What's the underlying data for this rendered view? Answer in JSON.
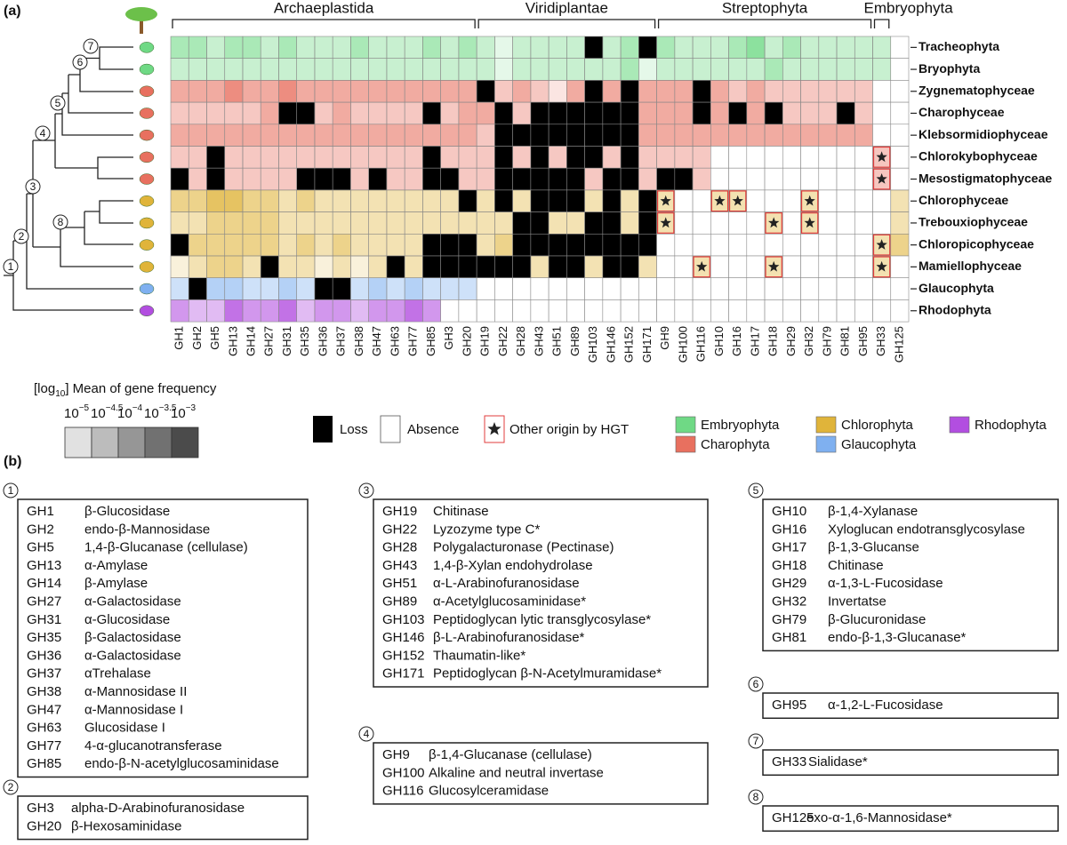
{
  "panel_a": "(a)",
  "panel_b": "(b)",
  "clades": [
    {
      "label": "Archaeplastida",
      "sections": [
        0,
        1
      ]
    },
    {
      "label": "Viridiplantae",
      "sections": [
        2
      ]
    },
    {
      "label": "Streptophyta",
      "sections": [
        3,
        4,
        5
      ]
    },
    {
      "label": "Embryophyta",
      "sections": [
        6
      ]
    }
  ],
  "groups": [
    {
      "label": "Embryophyta",
      "color": "#6fd985"
    },
    {
      "label": "Charophyta",
      "color": "#e8705f"
    },
    {
      "label": "Chlorophyta",
      "color": "#e0b43a"
    },
    {
      "label": "Glaucophyta",
      "color": "#7fb0f0"
    },
    {
      "label": "Rhodophyta",
      "color": "#b24ee0"
    }
  ],
  "key": {
    "loss": "Loss",
    "absence": "Absence",
    "hgt": "Other origin by HGT"
  },
  "scale": {
    "title_pre": "[log",
    "title_sub": "10",
    "title_post": "] Mean of gene frequency",
    "base": "10",
    "ticks": [
      {
        "value": -5,
        "label": "−5"
      },
      {
        "value": -4.5,
        "label": "−4.5"
      },
      {
        "value": -4,
        "label": "−4"
      },
      {
        "value": -3.5,
        "label": "−3.5"
      },
      {
        "value": -3,
        "label": "−3"
      }
    ]
  },
  "rows": [
    {
      "label": "Tracheophyta",
      "group": "Embryophyta",
      "cells": [
        -4,
        -4,
        -4.5,
        -4,
        -4,
        -4.5,
        -4,
        -4.5,
        -4.5,
        -4.5,
        -4,
        -4.5,
        -4.5,
        -4.5,
        -4,
        -4.5,
        -4,
        -4.5,
        -5,
        -4.5,
        -4.5,
        -4.5,
        -4.5,
        "L",
        -4.5,
        -4,
        "L",
        -4,
        -4.5,
        -4.5,
        -4.5,
        -4,
        -3.5,
        -4.5,
        -4,
        -4.5,
        -4.5,
        -4.5,
        -4.5,
        -4.5,
        "A"
      ]
    },
    {
      "label": "Bryophyta",
      "group": "Embryophyta",
      "cells": [
        -4.5,
        -4.5,
        -4.5,
        -4.5,
        -4.5,
        -4.5,
        -4.5,
        -4.5,
        -4.5,
        -4.5,
        -4.5,
        -4.5,
        -4.5,
        -4.5,
        -4.5,
        -4.5,
        -4.5,
        -4.5,
        -5,
        -4.5,
        -4.5,
        -4.5,
        -4.5,
        -4.5,
        -4.5,
        -4,
        -5,
        -4.5,
        -4.5,
        -4.5,
        -4.5,
        -4.5,
        -4.5,
        -4,
        -4.5,
        -4.5,
        -4.5,
        -4.5,
        -4.5,
        -4.5,
        "A"
      ]
    },
    {
      "label": "Zygnematophyceae",
      "group": "Charophyta",
      "cells": [
        -4,
        -4,
        -4,
        -3.5,
        -4,
        -4,
        -3.5,
        -4,
        -4,
        -4,
        -4,
        -4,
        -4,
        -4,
        -4,
        -4,
        -4,
        "L",
        -4.5,
        -4,
        -4.5,
        -5,
        -4,
        "L",
        -4,
        "L",
        -4,
        -4,
        -4,
        "L",
        -4,
        -4.5,
        -4,
        -4.5,
        -4.5,
        -4.5,
        -4.5,
        -4.5,
        -4.5,
        "A",
        "A"
      ]
    },
    {
      "label": "Charophyceae",
      "group": "Charophyta",
      "cells": [
        -4.5,
        -4.5,
        -4.5,
        -4.5,
        -4.5,
        -4,
        "L",
        "L",
        -4.5,
        -4,
        -4.5,
        -4.5,
        -4.5,
        -4.5,
        "L",
        -4.5,
        -4,
        -4,
        "L",
        -4.5,
        "L",
        "L",
        "L",
        "L",
        "L",
        "L",
        -4,
        -4,
        -4,
        "L",
        -4,
        "L",
        -4,
        "L",
        -4.5,
        -4.5,
        -4.5,
        "L",
        -4.5,
        "A",
        "A"
      ]
    },
    {
      "label": "Klebsormidiophyceae",
      "group": "Charophyta",
      "cells": [
        -4,
        -4,
        -4,
        -4,
        -4,
        -4,
        -4,
        -4,
        -4,
        -4,
        -4,
        -4,
        -4,
        -4,
        -4,
        -4,
        -4,
        -4.5,
        "L",
        "L",
        "L",
        "L",
        "L",
        "L",
        "L",
        "L",
        -4,
        -4,
        -4,
        -4,
        -4,
        -4,
        -4,
        -4,
        -4,
        -4,
        -4,
        -4,
        -4,
        "A",
        "A"
      ]
    },
    {
      "label": "Chlorokybophyceae",
      "group": "Charophyta",
      "cells": [
        -4.5,
        -4.5,
        "L",
        -4.5,
        -4.5,
        -4.5,
        -4.5,
        -4.5,
        -4.5,
        -4.5,
        -4.5,
        -4.5,
        -4.5,
        -4.5,
        "L",
        -4.5,
        -4.5,
        -4.5,
        "L",
        -4.5,
        "L",
        -4.5,
        "L",
        "L",
        -4.5,
        "L",
        -4.5,
        -4.5,
        -4.5,
        -4.5,
        "A",
        "A",
        "A",
        "A",
        "A",
        "A",
        "A",
        "A",
        "A",
        "H",
        "A"
      ]
    },
    {
      "label": "Mesostigmatophyceae",
      "group": "Charophyta",
      "cells": [
        "L",
        -4.5,
        "L",
        -4.5,
        -4.5,
        -4.5,
        -4.5,
        "L",
        "L",
        "L",
        -4.5,
        "L",
        -4.5,
        -4.5,
        "L",
        "L",
        -4.5,
        -4.5,
        "L",
        "L",
        "L",
        "L",
        "L",
        -4.5,
        "L",
        "L",
        -4.5,
        "L",
        "L",
        -4.5,
        "A",
        "A",
        "A",
        "A",
        "A",
        "A",
        "A",
        "A",
        "A",
        "H",
        "A"
      ]
    },
    {
      "label": "Chlorophyceae",
      "group": "Chlorophyta",
      "cells": [
        -4,
        -4,
        -3.5,
        -3.5,
        -4,
        -4,
        -4.5,
        -4,
        -4.5,
        -4.5,
        -4.5,
        -4.5,
        -4.5,
        -4.5,
        -4.5,
        -4.5,
        "L",
        -4.5,
        "L",
        -4.5,
        "L",
        "L",
        "L",
        -4.5,
        "L",
        -4.5,
        "L",
        "H",
        "A",
        "A",
        "H",
        "H",
        "A",
        "A",
        "A",
        "H",
        "A",
        "A",
        "A",
        "A",
        -4.5
      ]
    },
    {
      "label": "Trebouxiophyceae",
      "group": "Chlorophyta",
      "cells": [
        -4.5,
        -4.5,
        -4,
        -4,
        -4,
        -4,
        -4.5,
        -4.5,
        -4.5,
        -4.5,
        -4.5,
        -4.5,
        -4.5,
        -4.5,
        -4.5,
        -4.5,
        -4.5,
        -4.5,
        -4.5,
        "L",
        "L",
        -4.5,
        -4.5,
        "L",
        "L",
        -4.5,
        "L",
        "H",
        "A",
        "A",
        "A",
        "A",
        "A",
        "H",
        "A",
        "H",
        "A",
        "A",
        "A",
        "A",
        -4.5
      ]
    },
    {
      "label": "Chloropicophyceae",
      "group": "Chlorophyta",
      "cells": [
        "L",
        -4,
        -4,
        -4,
        -4,
        -4,
        -4.5,
        -4,
        -4.5,
        -4,
        -4.5,
        -4.5,
        -4.5,
        -4.5,
        "L",
        "L",
        "L",
        -4.5,
        -4,
        "L",
        "L",
        "L",
        "L",
        "L",
        "L",
        "L",
        "L",
        "A",
        "A",
        "A",
        "A",
        "A",
        "A",
        "A",
        "A",
        "A",
        "A",
        "A",
        "A",
        "H",
        -4
      ]
    },
    {
      "label": "Mamiellophyceae",
      "group": "Chlorophyta",
      "cells": [
        -5,
        -4.5,
        -4,
        -4,
        -4.5,
        "L",
        -4.5,
        -4.5,
        -5,
        -4.5,
        -5,
        -4.5,
        "L",
        -4.5,
        "L",
        "L",
        "L",
        "L",
        "L",
        "L",
        -4.5,
        "L",
        "L",
        -4.5,
        "L",
        "L",
        -4.5,
        "A",
        "A",
        "H",
        "A",
        "A",
        "A",
        "H",
        "A",
        "A",
        "A",
        "A",
        "A",
        "H",
        "A"
      ]
    },
    {
      "label": "Glaucophyta",
      "group": "Glaucophyta",
      "cells": [
        -4.5,
        "L",
        -4,
        -4,
        -4.5,
        -4.5,
        -4,
        -4.5,
        "L",
        "L",
        -4.5,
        -4,
        -4.5,
        -4,
        -4.5,
        -4.5,
        -4.5,
        "A",
        "A",
        "A",
        "A",
        "A",
        "A",
        "A",
        "A",
        "A",
        "A",
        "A",
        "A",
        "A",
        "A",
        "A",
        "A",
        "A",
        "A",
        "A",
        "A",
        "A",
        "A",
        "A",
        "A"
      ]
    },
    {
      "label": "Rhodophyta",
      "group": "Rhodophyta",
      "cells": [
        -4,
        -4.5,
        -4.5,
        -3.5,
        -4,
        -4,
        -3.5,
        -4.5,
        -4,
        -4,
        -4.5,
        -4,
        -4,
        -3.5,
        -4,
        "A",
        "A",
        "A",
        "A",
        "A",
        "A",
        "A",
        "A",
        "A",
        "A",
        "A",
        "A",
        "A",
        "A",
        "A",
        "A",
        "A",
        "A",
        "A",
        "A",
        "A",
        "A",
        "A",
        "A",
        "A",
        "A"
      ]
    }
  ],
  "sections": [
    {
      "number": "1",
      "rows": [
        [
          "GH1",
          "β-Glucosidase"
        ],
        [
          "GH2",
          "endo-β-Mannosidase"
        ],
        [
          "GH5",
          "1,4-β-Glucanase (cellulase)"
        ],
        [
          "GH13",
          "α-Amylase"
        ],
        [
          "GH14",
          "β-Amylase"
        ],
        [
          "GH27",
          "α-Galactosidase"
        ],
        [
          "GH31",
          "α-Glucosidase"
        ],
        [
          "GH35",
          "β-Galactosidase"
        ],
        [
          "GH36",
          "α-Galactosidase"
        ],
        [
          "GH37",
          "αTrehalase"
        ],
        [
          "GH38",
          "α-Mannosidase II"
        ],
        [
          "GH47",
          "α-Mannosidase I"
        ],
        [
          "GH63",
          "Glucosidase I"
        ],
        [
          "GH77",
          "4-α-glucanotransferase"
        ],
        [
          "GH85",
          "endo-β-N-acetylglucosaminidase"
        ]
      ]
    },
    {
      "number": "2",
      "rows": [
        [
          "GH3",
          "alpha-D-Arabinofuranosidase"
        ],
        [
          "GH20",
          "β-Hexosaminidase"
        ]
      ]
    },
    {
      "number": "3",
      "rows": [
        [
          "GH19",
          "Chitinase"
        ],
        [
          "GH22",
          "Lyzozyme type C*"
        ],
        [
          "GH28",
          "Polygalacturonase (Pectinase)"
        ],
        [
          "GH43",
          "1,4-β-Xylan endohydrolase"
        ],
        [
          "GH51",
          "α-L-Arabinofuranosidase"
        ],
        [
          "GH89",
          "α-Acetylglucosaminidase*"
        ],
        [
          "GH103",
          "Peptidoglycan lytic transglycosylase*"
        ],
        [
          "GH146",
          "β-L-Arabinofuranosidase*"
        ],
        [
          "GH152",
          "Thaumatin-like*"
        ],
        [
          "GH171",
          "Peptidoglycan β-N-Acetylmuramidase*"
        ]
      ]
    },
    {
      "number": "4",
      "rows": [
        [
          "GH9",
          "β-1,4-Glucanase (cellulase)"
        ],
        [
          "GH100",
          "Alkaline and neutral invertase"
        ],
        [
          "GH116",
          "Glucosylceramidase"
        ]
      ]
    },
    {
      "number": "5",
      "rows": [
        [
          "GH10",
          "β-1,4-Xylanase"
        ],
        [
          "GH16",
          "Xyloglucan endotransglycosylase"
        ],
        [
          "GH17",
          "β-1,3-Glucanse"
        ],
        [
          "GH18",
          "Chitinase"
        ],
        [
          "GH29",
          "α-1,3-L-Fucosidase"
        ],
        [
          "GH32",
          "Invertatse"
        ],
        [
          "GH79",
          "β-Glucuronidase"
        ],
        [
          "GH81",
          "endo-β-1,3-Glucanase*"
        ]
      ]
    },
    {
      "number": "6",
      "rows": [
        [
          "GH95",
          "α-1,2-L-Fucosidase"
        ]
      ]
    },
    {
      "number": "7",
      "rows": [
        [
          "GH33",
          "Sialidase*"
        ]
      ]
    },
    {
      "number": "8",
      "rows": [
        [
          "GH125",
          "exo-α-1,6-Mannosidase*"
        ]
      ]
    }
  ]
}
